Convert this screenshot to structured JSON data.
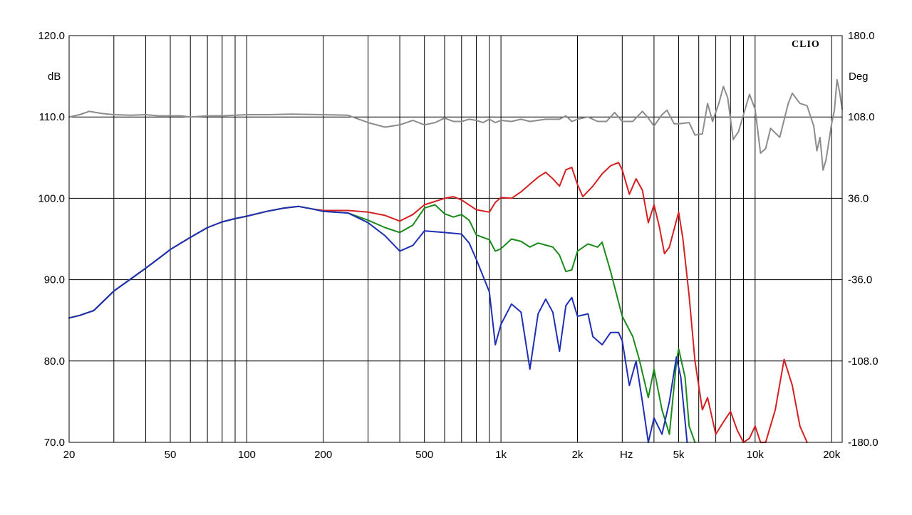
{
  "chart_data": {
    "type": "line",
    "brand": "CLIO",
    "x_scale": "log",
    "xlim": [
      20,
      22000
    ],
    "ylim": [
      70,
      120
    ],
    "y2lim": [
      -180,
      180
    ],
    "x_unit_label": "Hz",
    "y_unit_label": "dB",
    "y2_unit_label": "Deg",
    "x_tick_labels": [
      {
        "value": 20,
        "label": "20"
      },
      {
        "value": 50,
        "label": "50"
      },
      {
        "value": 100,
        "label": "100"
      },
      {
        "value": 200,
        "label": "200"
      },
      {
        "value": 500,
        "label": "500"
      },
      {
        "value": 1000,
        "label": "1k"
      },
      {
        "value": 2000,
        "label": "2k"
      },
      {
        "value": 5000,
        "label": "5k"
      },
      {
        "value": 10000,
        "label": "10k"
      },
      {
        "value": 20000,
        "label": "20k"
      }
    ],
    "x_gridlines": [
      30,
      40,
      50,
      60,
      70,
      80,
      90,
      100,
      200,
      300,
      400,
      500,
      600,
      700,
      800,
      900,
      1000,
      2000,
      3000,
      4000,
      5000,
      6000,
      7000,
      8000,
      9000,
      10000,
      20000
    ],
    "y_tick_labels": [
      {
        "value": 120,
        "label": "120.0"
      },
      {
        "value": 110,
        "label": "110.0"
      },
      {
        "value": 100,
        "label": "100.0"
      },
      {
        "value": 90,
        "label": "90.0"
      },
      {
        "value": 80,
        "label": "80.0"
      },
      {
        "value": 70,
        "label": "70.0"
      }
    ],
    "y2_tick_labels": [
      {
        "value": 180,
        "label": "180.0"
      },
      {
        "value": 108,
        "label": "108.0"
      },
      {
        "value": 36,
        "label": "36.0"
      },
      {
        "value": -36,
        "label": "-36.0"
      },
      {
        "value": -108,
        "label": "-108.0"
      },
      {
        "value": -180,
        "label": "-180.0"
      }
    ],
    "series": [
      {
        "color": "#8c8c8c",
        "axis": "right",
        "points": [
          [
            20,
            108
          ],
          [
            22,
            110
          ],
          [
            24,
            113
          ],
          [
            27,
            111
          ],
          [
            30,
            110
          ],
          [
            35,
            109.5
          ],
          [
            40,
            110
          ],
          [
            45,
            109
          ],
          [
            50,
            109
          ],
          [
            55,
            109
          ],
          [
            60,
            108
          ],
          [
            70,
            109
          ],
          [
            80,
            109
          ],
          [
            90,
            109.5
          ],
          [
            100,
            110
          ],
          [
            120,
            110
          ],
          [
            150,
            110.5
          ],
          [
            200,
            110
          ],
          [
            250,
            109.5
          ],
          [
            300,
            103
          ],
          [
            350,
            99
          ],
          [
            400,
            101
          ],
          [
            450,
            105
          ],
          [
            500,
            101
          ],
          [
            550,
            103
          ],
          [
            600,
            107
          ],
          [
            650,
            104
          ],
          [
            700,
            104
          ],
          [
            750,
            106
          ],
          [
            800,
            105
          ],
          [
            850,
            103
          ],
          [
            900,
            106
          ],
          [
            950,
            103
          ],
          [
            1000,
            105
          ],
          [
            1100,
            104
          ],
          [
            1200,
            106
          ],
          [
            1300,
            104
          ],
          [
            1500,
            106
          ],
          [
            1700,
            106
          ],
          [
            1800,
            109
          ],
          [
            1900,
            104
          ],
          [
            2000,
            106
          ],
          [
            2200,
            108
          ],
          [
            2400,
            104
          ],
          [
            2600,
            104
          ],
          [
            2800,
            112
          ],
          [
            3000,
            104
          ],
          [
            3300,
            104
          ],
          [
            3600,
            113
          ],
          [
            3800,
            107
          ],
          [
            4000,
            100
          ],
          [
            4300,
            110
          ],
          [
            4500,
            114
          ],
          [
            4800,
            102
          ],
          [
            5000,
            102
          ],
          [
            5500,
            103
          ],
          [
            5800,
            92
          ],
          [
            6200,
            93
          ],
          [
            6500,
            120
          ],
          [
            6800,
            104
          ],
          [
            7200,
            120
          ],
          [
            7500,
            135
          ],
          [
            7800,
            125
          ],
          [
            8200,
            88
          ],
          [
            8600,
            95
          ],
          [
            9000,
            110
          ],
          [
            9500,
            128
          ],
          [
            10000,
            115
          ],
          [
            10500,
            76
          ],
          [
            11000,
            80
          ],
          [
            11500,
            98
          ],
          [
            12500,
            90
          ],
          [
            13500,
            120
          ],
          [
            14000,
            129
          ],
          [
            15000,
            120
          ],
          [
            16000,
            118
          ],
          [
            17000,
            100
          ],
          [
            17500,
            78
          ],
          [
            18000,
            90
          ],
          [
            18500,
            61
          ],
          [
            19000,
            70
          ],
          [
            20000,
            102
          ],
          [
            20500,
            114
          ],
          [
            21000,
            141
          ],
          [
            21500,
            130
          ],
          [
            22000,
            115
          ]
        ]
      },
      {
        "color": "#d42020",
        "axis": "left",
        "points": [
          [
            20,
            85.3
          ],
          [
            22,
            85.6
          ],
          [
            25,
            86.2
          ],
          [
            30,
            88.6
          ],
          [
            35,
            90.1
          ],
          [
            40,
            91.4
          ],
          [
            45,
            92.6
          ],
          [
            50,
            93.7
          ],
          [
            60,
            95.2
          ],
          [
            70,
            96.4
          ],
          [
            80,
            97.1
          ],
          [
            90,
            97.5
          ],
          [
            100,
            97.8
          ],
          [
            120,
            98.4
          ],
          [
            140,
            98.8
          ],
          [
            160,
            99
          ],
          [
            180,
            98.7
          ],
          [
            200,
            98.5
          ],
          [
            250,
            98.5
          ],
          [
            300,
            98.3
          ],
          [
            350,
            97.9
          ],
          [
            400,
            97.2
          ],
          [
            450,
            98
          ],
          [
            500,
            99.2
          ],
          [
            600,
            100
          ],
          [
            650,
            100.2
          ],
          [
            700,
            99.8
          ],
          [
            800,
            98.6
          ],
          [
            900,
            98.3
          ],
          [
            950,
            99.5
          ],
          [
            1000,
            100.1
          ],
          [
            1100,
            100
          ],
          [
            1200,
            100.8
          ],
          [
            1400,
            102.6
          ],
          [
            1500,
            103.2
          ],
          [
            1600,
            102.4
          ],
          [
            1700,
            101.5
          ],
          [
            1800,
            103.5
          ],
          [
            1900,
            103.8
          ],
          [
            2000,
            101.7
          ],
          [
            2100,
            100.2
          ],
          [
            2300,
            101.5
          ],
          [
            2500,
            103
          ],
          [
            2700,
            104
          ],
          [
            2900,
            104.4
          ],
          [
            3000,
            103.5
          ],
          [
            3200,
            100.5
          ],
          [
            3400,
            102.4
          ],
          [
            3600,
            101
          ],
          [
            3800,
            97
          ],
          [
            4000,
            99.2
          ],
          [
            4200,
            96.5
          ],
          [
            4400,
            93.2
          ],
          [
            4600,
            94
          ],
          [
            5000,
            98.3
          ],
          [
            5200,
            95
          ],
          [
            5500,
            88
          ],
          [
            5800,
            80
          ],
          [
            6200,
            74
          ],
          [
            6500,
            75.5
          ],
          [
            7000,
            71
          ],
          [
            7500,
            72.5
          ],
          [
            8000,
            73.8
          ],
          [
            8500,
            71.5
          ],
          [
            9000,
            70
          ],
          [
            9500,
            70.5
          ],
          [
            10000,
            72
          ],
          [
            10500,
            70
          ],
          [
            11000,
            70
          ],
          [
            12000,
            74
          ],
          [
            13000,
            80.2
          ],
          [
            14000,
            77
          ],
          [
            15000,
            72
          ],
          [
            16000,
            70
          ]
        ]
      },
      {
        "color": "#1a8a1a",
        "axis": "left",
        "points": [
          [
            20,
            85.3
          ],
          [
            22,
            85.6
          ],
          [
            25,
            86.2
          ],
          [
            30,
            88.6
          ],
          [
            35,
            90.1
          ],
          [
            40,
            91.4
          ],
          [
            45,
            92.6
          ],
          [
            50,
            93.7
          ],
          [
            60,
            95.2
          ],
          [
            70,
            96.4
          ],
          [
            80,
            97.1
          ],
          [
            90,
            97.5
          ],
          [
            100,
            97.8
          ],
          [
            120,
            98.4
          ],
          [
            140,
            98.8
          ],
          [
            160,
            99
          ],
          [
            180,
            98.7
          ],
          [
            200,
            98.4
          ],
          [
            250,
            98.2
          ],
          [
            300,
            97.3
          ],
          [
            350,
            96.4
          ],
          [
            400,
            95.8
          ],
          [
            450,
            96.7
          ],
          [
            500,
            98.8
          ],
          [
            550,
            99.2
          ],
          [
            600,
            98.1
          ],
          [
            650,
            97.7
          ],
          [
            700,
            98
          ],
          [
            750,
            97.3
          ],
          [
            800,
            95.5
          ],
          [
            900,
            94.9
          ],
          [
            950,
            93.5
          ],
          [
            1000,
            93.8
          ],
          [
            1100,
            95
          ],
          [
            1200,
            94.7
          ],
          [
            1300,
            94
          ],
          [
            1400,
            94.5
          ],
          [
            1600,
            94
          ],
          [
            1700,
            93
          ],
          [
            1800,
            91
          ],
          [
            1900,
            91.2
          ],
          [
            2000,
            93.5
          ],
          [
            2200,
            94.4
          ],
          [
            2400,
            94
          ],
          [
            2500,
            94.6
          ],
          [
            2700,
            91
          ],
          [
            3000,
            85.5
          ],
          [
            3300,
            83
          ],
          [
            3500,
            80.2
          ],
          [
            3800,
            75.5
          ],
          [
            4000,
            79
          ],
          [
            4300,
            74
          ],
          [
            4600,
            71
          ],
          [
            4900,
            79.8
          ],
          [
            5000,
            81.5
          ],
          [
            5300,
            78
          ],
          [
            5500,
            72
          ],
          [
            5800,
            70
          ]
        ]
      },
      {
        "color": "#1f2fb5",
        "axis": "left",
        "points": [
          [
            20,
            85.3
          ],
          [
            22,
            85.6
          ],
          [
            25,
            86.2
          ],
          [
            30,
            88.6
          ],
          [
            35,
            90.1
          ],
          [
            40,
            91.4
          ],
          [
            45,
            92.6
          ],
          [
            50,
            93.7
          ],
          [
            60,
            95.2
          ],
          [
            70,
            96.4
          ],
          [
            80,
            97.1
          ],
          [
            90,
            97.5
          ],
          [
            100,
            97.8
          ],
          [
            120,
            98.4
          ],
          [
            140,
            98.8
          ],
          [
            160,
            99
          ],
          [
            180,
            98.7
          ],
          [
            200,
            98.4
          ],
          [
            250,
            98.2
          ],
          [
            300,
            97
          ],
          [
            350,
            95.4
          ],
          [
            400,
            93.5
          ],
          [
            450,
            94.2
          ],
          [
            500,
            96
          ],
          [
            600,
            95.8
          ],
          [
            700,
            95.6
          ],
          [
            750,
            94.5
          ],
          [
            800,
            92.5
          ],
          [
            900,
            88.5
          ],
          [
            950,
            82
          ],
          [
            1000,
            84.5
          ],
          [
            1100,
            87
          ],
          [
            1200,
            86
          ],
          [
            1300,
            79
          ],
          [
            1400,
            85.8
          ],
          [
            1500,
            87.6
          ],
          [
            1600,
            86
          ],
          [
            1700,
            81.2
          ],
          [
            1800,
            86.8
          ],
          [
            1900,
            87.8
          ],
          [
            2000,
            85.5
          ],
          [
            2200,
            85.8
          ],
          [
            2300,
            83
          ],
          [
            2500,
            82
          ],
          [
            2700,
            83.5
          ],
          [
            2900,
            83.5
          ],
          [
            3000,
            82.5
          ],
          [
            3200,
            77
          ],
          [
            3400,
            80
          ],
          [
            3600,
            75
          ],
          [
            3800,
            70
          ],
          [
            4000,
            73
          ],
          [
            4300,
            71
          ],
          [
            4600,
            75
          ],
          [
            4900,
            80.5
          ],
          [
            5100,
            78
          ],
          [
            5400,
            70
          ]
        ]
      }
    ]
  }
}
